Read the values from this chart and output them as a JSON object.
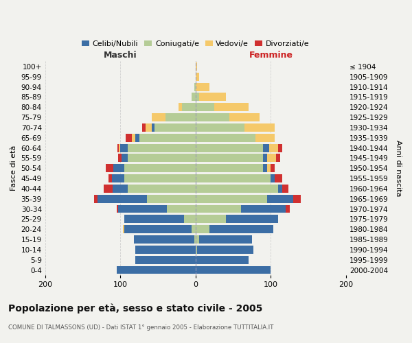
{
  "age_groups": [
    "0-4",
    "5-9",
    "10-14",
    "15-19",
    "20-24",
    "25-29",
    "30-34",
    "35-39",
    "40-44",
    "45-49",
    "50-54",
    "55-59",
    "60-64",
    "65-69",
    "70-74",
    "75-79",
    "80-84",
    "85-89",
    "90-94",
    "95-99",
    "100+"
  ],
  "birth_years": [
    "2000-2004",
    "1995-1999",
    "1990-1994",
    "1985-1989",
    "1980-1984",
    "1975-1979",
    "1970-1974",
    "1965-1969",
    "1960-1964",
    "1955-1959",
    "1950-1954",
    "1945-1949",
    "1940-1944",
    "1935-1939",
    "1930-1934",
    "1925-1929",
    "1920-1924",
    "1915-1919",
    "1910-1914",
    "1905-1909",
    "≤ 1904"
  ],
  "colors": {
    "celibi": "#3c6ea5",
    "coniugati": "#b5cc96",
    "vedovi": "#f5c96a",
    "divorziati": "#d03030"
  },
  "maschi": {
    "celibi": [
      105,
      80,
      80,
      80,
      90,
      80,
      65,
      65,
      20,
      16,
      14,
      8,
      10,
      5,
      3,
      0,
      0,
      0,
      0,
      0,
      0
    ],
    "coniugati": [
      0,
      0,
      0,
      2,
      5,
      15,
      38,
      65,
      90,
      95,
      95,
      90,
      90,
      75,
      55,
      40,
      18,
      5,
      2,
      0,
      0
    ],
    "vedovi": [
      0,
      0,
      0,
      0,
      2,
      0,
      0,
      0,
      0,
      0,
      0,
      0,
      2,
      5,
      8,
      18,
      5,
      0,
      0,
      0,
      0
    ],
    "divorziati": [
      0,
      0,
      0,
      0,
      0,
      0,
      2,
      5,
      12,
      5,
      10,
      5,
      2,
      8,
      5,
      0,
      0,
      0,
      0,
      0,
      0
    ]
  },
  "femmine": {
    "celibi": [
      100,
      70,
      75,
      70,
      85,
      70,
      60,
      35,
      5,
      5,
      5,
      5,
      8,
      0,
      0,
      0,
      0,
      0,
      0,
      0,
      0
    ],
    "coniugati": [
      0,
      0,
      2,
      5,
      18,
      40,
      60,
      95,
      110,
      100,
      90,
      90,
      90,
      80,
      65,
      45,
      25,
      5,
      0,
      0,
      0
    ],
    "vedovi": [
      0,
      0,
      0,
      0,
      0,
      0,
      0,
      0,
      0,
      0,
      5,
      12,
      12,
      25,
      40,
      40,
      45,
      35,
      18,
      5,
      2
    ],
    "divorziati": [
      0,
      0,
      0,
      0,
      0,
      0,
      5,
      10,
      8,
      10,
      5,
      5,
      5,
      0,
      0,
      0,
      0,
      0,
      0,
      0,
      0
    ]
  },
  "xlim": 200,
  "title": "Popolazione per età, sesso e stato civile - 2005",
  "subtitle": "COMUNE DI TALMASSONS (UD) - Dati ISTAT 1° gennaio 2005 - Elaborazione TUTTITALIA.IT",
  "ylabel_left": "Fasce di età",
  "ylabel_right": "Anni di nascita",
  "label_maschi": "Maschi",
  "label_femmine": "Femmine",
  "legend_labels": [
    "Celibi/Nubili",
    "Coniugati/e",
    "Vedovi/e",
    "Divorziati/e"
  ],
  "background_color": "#f2f2ee",
  "grid_color": "#cccccc"
}
